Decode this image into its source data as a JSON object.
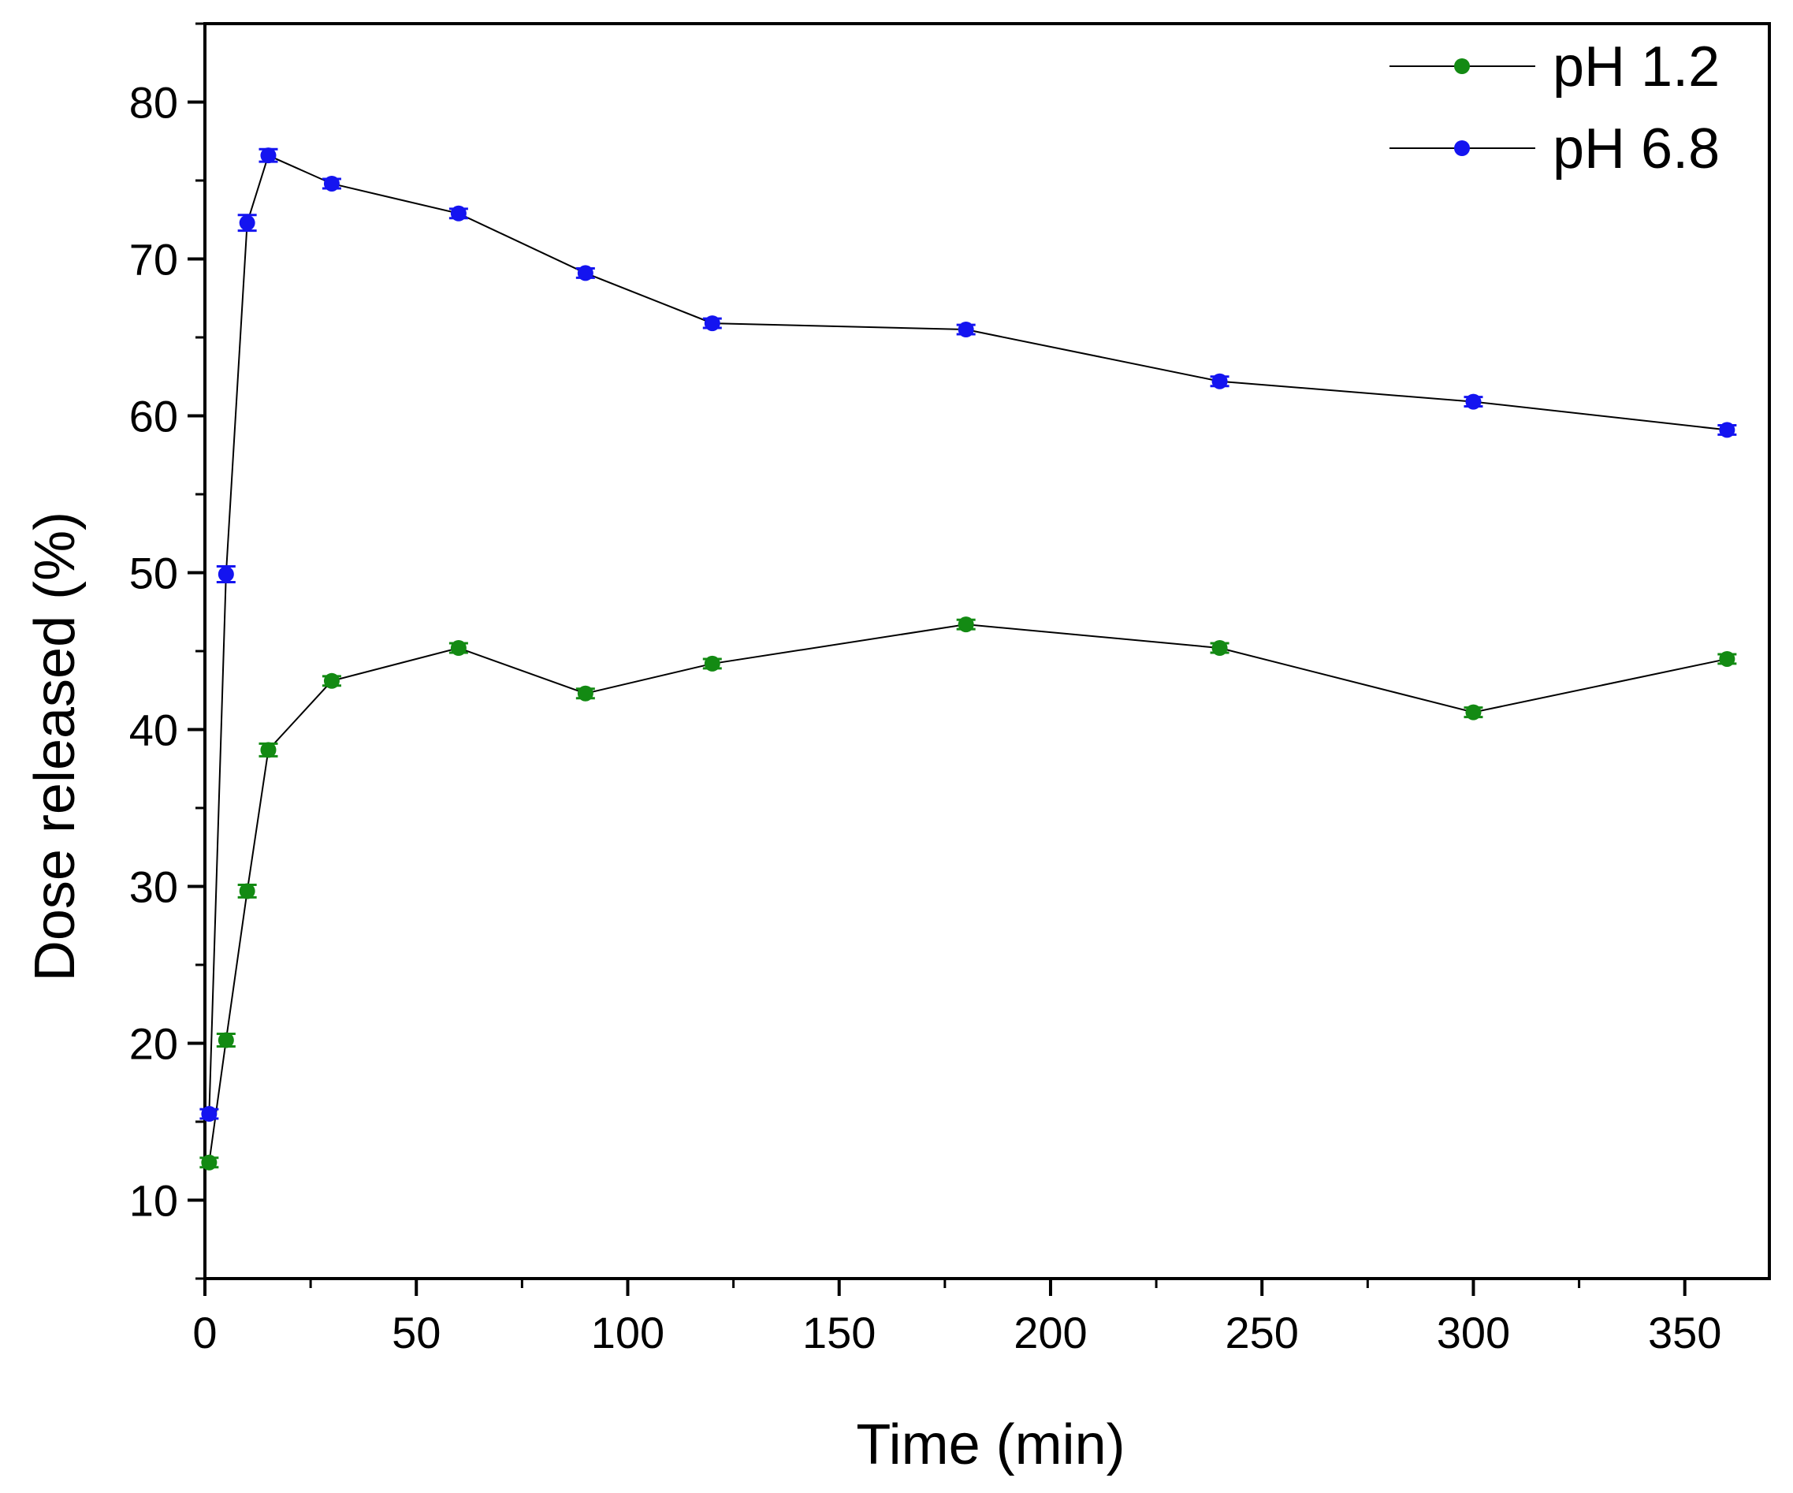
{
  "chart_data": {
    "type": "line",
    "title": "",
    "xlabel": "Time (min)",
    "ylabel": "Dose released (%)",
    "xlim": [
      0,
      370
    ],
    "ylim": [
      5,
      85
    ],
    "x_ticks": [
      0,
      50,
      100,
      150,
      200,
      250,
      300,
      350
    ],
    "y_ticks": [
      10,
      20,
      30,
      40,
      50,
      60,
      70,
      80
    ],
    "x_tick_labels": [
      "0",
      "50",
      "100",
      "150",
      "200",
      "250",
      "300",
      "350"
    ],
    "y_tick_labels": [
      "10",
      "20",
      "30",
      "40",
      "50",
      "60",
      "70",
      "80"
    ],
    "grid": false,
    "legend_position": "top-right",
    "x": [
      1,
      5,
      10,
      15,
      30,
      60,
      90,
      120,
      180,
      240,
      300,
      360
    ],
    "series": [
      {
        "name": "pH 1.2",
        "color": "#138a13",
        "values": [
          12.4,
          20.2,
          29.7,
          38.7,
          43.1,
          45.2,
          42.3,
          44.2,
          46.7,
          45.2,
          41.1,
          44.5
        ],
        "errors": [
          0.3,
          0.4,
          0.4,
          0.4,
          0.3,
          0.3,
          0.3,
          0.3,
          0.3,
          0.3,
          0.3,
          0.3
        ]
      },
      {
        "name": "pH 6.8",
        "color": "#1414f0",
        "values": [
          15.5,
          49.9,
          72.3,
          76.6,
          74.8,
          72.9,
          69.1,
          65.9,
          65.5,
          62.2,
          60.9,
          59.1
        ],
        "errors": [
          0.3,
          0.5,
          0.5,
          0.4,
          0.3,
          0.3,
          0.3,
          0.3,
          0.3,
          0.3,
          0.3,
          0.3
        ]
      }
    ]
  }
}
